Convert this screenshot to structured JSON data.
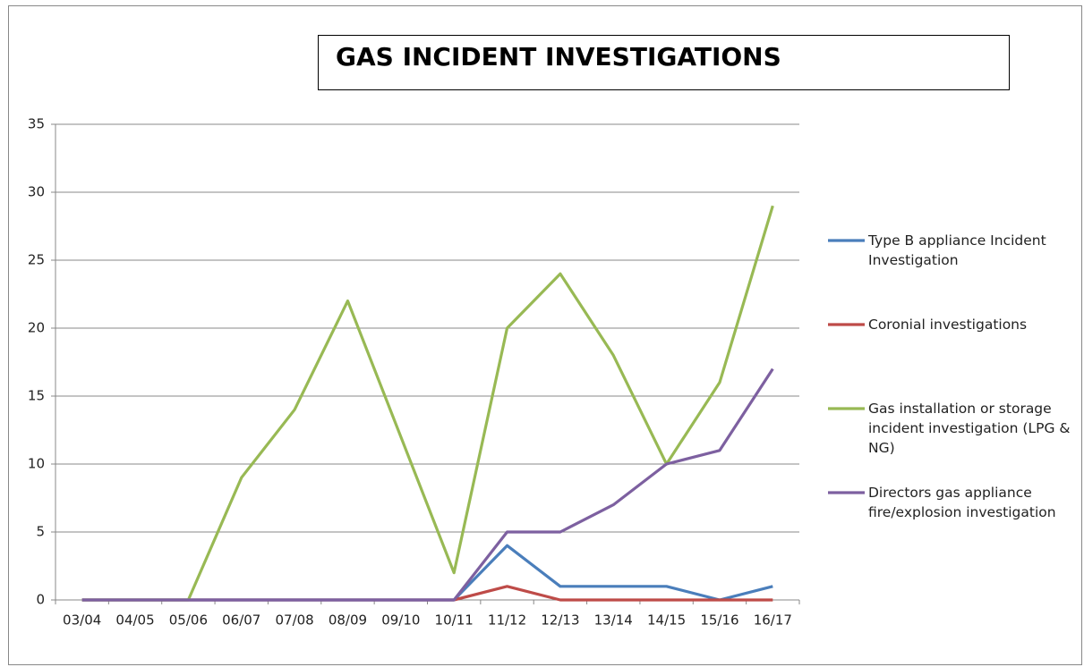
{
  "chart_data": {
    "type": "line",
    "title": "GAS INCIDENT INVESTIGATIONS",
    "categories": [
      "03/04",
      "04/05",
      "05/06",
      "06/07",
      "07/08",
      "08/09",
      "09/10",
      "10/11",
      "11/12",
      "12/13",
      "13/14",
      "14/15",
      "15/16",
      "16/17"
    ],
    "series": [
      {
        "name": "Type B appliance Incident Investigation",
        "color": "#4a7ebb",
        "values": [
          0,
          0,
          0,
          0,
          0,
          0,
          0,
          0,
          4,
          1,
          1,
          1,
          0,
          1
        ]
      },
      {
        "name": "Coronial investigations",
        "color": "#be4b48",
        "values": [
          0,
          0,
          0,
          0,
          0,
          0,
          0,
          0,
          1,
          0,
          0,
          0,
          0,
          0
        ]
      },
      {
        "name": "Gas installation or storage incident investigation (LPG & NG)",
        "color": "#98b954",
        "values": [
          0,
          0,
          0,
          9,
          14,
          22,
          12,
          2,
          20,
          24,
          18,
          10,
          16,
          29
        ]
      },
      {
        "name": "Directors gas appliance fire/explosion investigation",
        "color": "#7d60a0",
        "values": [
          0,
          0,
          0,
          0,
          0,
          0,
          0,
          0,
          5,
          5,
          7,
          10,
          11,
          17
        ]
      }
    ],
    "ylim": [
      0,
      35
    ],
    "yticks": [
      0,
      5,
      10,
      15,
      20,
      25,
      30,
      35
    ],
    "grid": true,
    "legend": "right"
  }
}
